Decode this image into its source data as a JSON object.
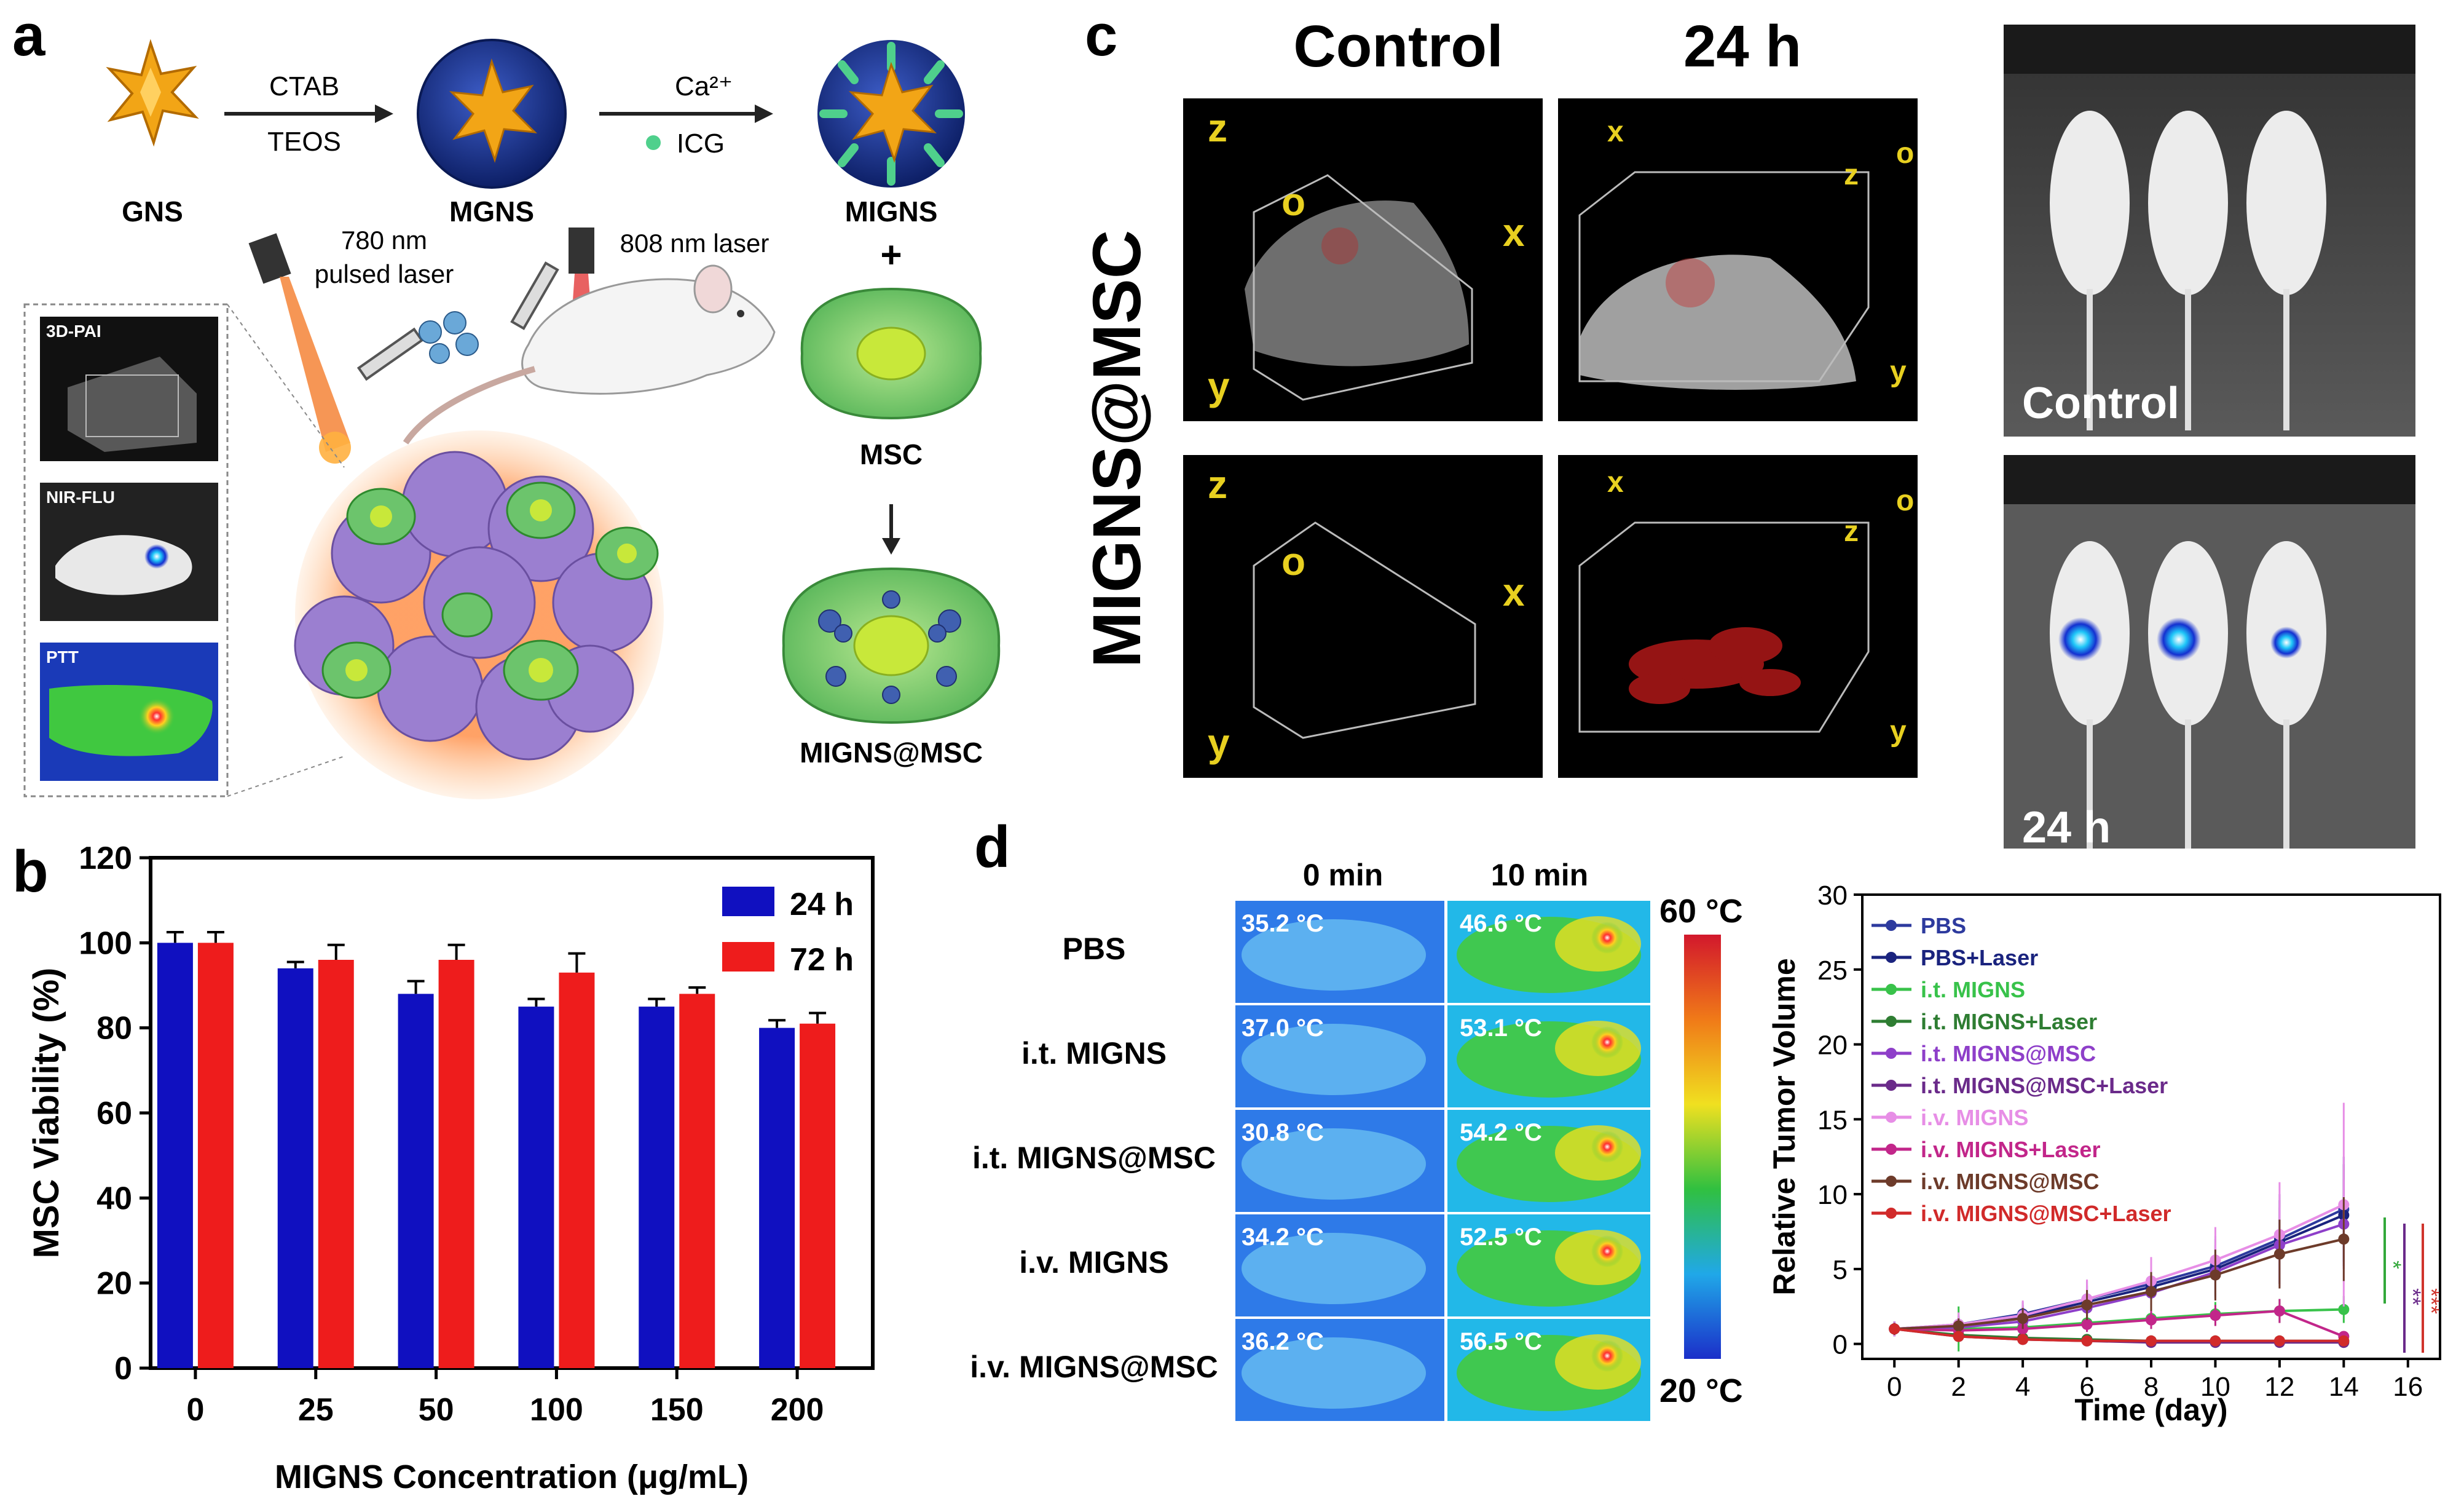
{
  "panels": {
    "a": {
      "letter": "a",
      "gns": "GNS",
      "mgns": "MGNS",
      "migns": "MIGNS",
      "ctab": "CTAB",
      "teos": "TEOS",
      "ca": "Ca²⁺",
      "icg": "ICG",
      "laser780_1": "780 nm",
      "laser780_2": "pulsed laser",
      "laser808": "808 nm laser",
      "plus": "+",
      "msc": "MSC",
      "migns_msc": "MIGNS@MSC",
      "inset_pai": "3D-PAI",
      "inset_flu": "NIR-FLU",
      "inset_ptt": "PTT"
    },
    "c": {
      "letter": "c",
      "col_control": "Control",
      "col_24h": "24 h",
      "row_label": "MIGNS@MSC",
      "mouse_control": "Control",
      "mouse_24h": "24 h"
    },
    "d": {
      "letter": "d",
      "col0": "0 min",
      "col10": "10 min",
      "rows": [
        {
          "label": "PBS",
          "t0": "35.2 °C",
          "t10": "46.6 °C"
        },
        {
          "label": "i.t. MIGNS",
          "t0": "37.0 °C",
          "t10": "53.1 °C"
        },
        {
          "label": "i.t. MIGNS@MSC",
          "t0": "30.8 °C",
          "t10": "54.2 °C"
        },
        {
          "label": "i.v. MIGNS",
          "t0": "34.2 °C",
          "t10": "52.5 °C"
        },
        {
          "label": "i.v. MIGNS@MSC",
          "t0": "36.2 °C",
          "t10": "56.5 °C"
        }
      ],
      "scale_max": "60 °C",
      "scale_min": "20 °C",
      "colors": {
        "scale_top": "#d2182c",
        "scale_bottom": "#1b2fc9"
      }
    }
  },
  "chart_data": [
    {
      "panel": "b",
      "letter": "b",
      "type": "bar",
      "categories": [
        "0",
        "25",
        "50",
        "100",
        "150",
        "200"
      ],
      "series": [
        {
          "name": "24 h",
          "color": "#1010c0",
          "values": [
            100,
            94,
            88,
            85,
            85,
            80
          ],
          "errors": [
            2.5,
            1.5,
            3.0,
            1.8,
            1.8,
            1.8
          ]
        },
        {
          "name": "72 h",
          "color": "#ee1c1c",
          "values": [
            100,
            96,
            96,
            93,
            88,
            81
          ],
          "errors": [
            2.5,
            3.5,
            3.5,
            4.5,
            1.5,
            2.5
          ]
        }
      ],
      "xlabel": "MIGNS Concentration (μg/mL)",
      "ylabel": "MSC Viability (%)",
      "ylim": [
        0,
        120
      ],
      "yticks": [
        0,
        20,
        40,
        60,
        80,
        100,
        120
      ],
      "legend": "top-right"
    },
    {
      "panel": "d",
      "type": "line",
      "x": [
        0,
        2,
        4,
        6,
        8,
        10,
        12,
        14
      ],
      "xticks": [
        0,
        2,
        4,
        6,
        8,
        10,
        12,
        14,
        16
      ],
      "xlim": [
        -1,
        17
      ],
      "yticks": [
        0,
        5,
        10,
        15,
        20,
        25,
        30
      ],
      "ylim": [
        -1,
        30
      ],
      "xlabel": "Time (day)",
      "ylabel": "Relative Tumor Volume",
      "legend": "top-left",
      "significance": [
        "*",
        "**",
        "***"
      ],
      "significance_colors": [
        "#32a83a",
        "#6a2a8a",
        "#d0342c"
      ],
      "series": [
        {
          "name": "PBS",
          "color": "#2d3a9e",
          "marker": "s",
          "values": [
            1,
            1.3,
            2.0,
            3.0,
            4.0,
            5.2,
            7.0,
            9.0
          ],
          "err": [
            0.5,
            0.6,
            0.8,
            1.2,
            1.5,
            2.0,
            3.0,
            3.5
          ]
        },
        {
          "name": "PBS+Laser",
          "color": "#1a237e",
          "marker": "o",
          "values": [
            1,
            1.2,
            1.8,
            2.8,
            3.8,
            5.0,
            6.8,
            8.6
          ],
          "err": [
            0.5,
            0.6,
            0.8,
            1.1,
            1.4,
            2.0,
            2.8,
            3.4
          ]
        },
        {
          "name": "i.t. MIGNS",
          "color": "#38c24a",
          "marker": "^",
          "values": [
            1,
            1.0,
            1.1,
            1.4,
            1.7,
            2.0,
            2.2,
            2.3
          ],
          "err": [
            0.4,
            1.5,
            0.6,
            0.6,
            0.7,
            0.8,
            0.8,
            0.9
          ]
        },
        {
          "name": "i.t. MIGNS+Laser",
          "color": "#2e7d32",
          "marker": "v",
          "values": [
            1,
            0.6,
            0.4,
            0.3,
            0.2,
            0.2,
            0.2,
            0.2
          ],
          "err": [
            0.3,
            0.2,
            0.2,
            0.2,
            0.1,
            0.1,
            0.1,
            0.1
          ]
        },
        {
          "name": "i.t. MIGNS@MSC",
          "color": "#8e3fc9",
          "marker": "D",
          "values": [
            1,
            1.1,
            1.5,
            2.4,
            3.4,
            4.8,
            6.6,
            8.0
          ],
          "err": [
            0.4,
            0.5,
            0.7,
            1.0,
            1.3,
            1.8,
            2.5,
            3.0
          ]
        },
        {
          "name": "i.t. MIGNS@MSC+Laser",
          "color": "#6a2a8a",
          "marker": "<",
          "values": [
            1,
            0.5,
            0.3,
            0.2,
            0.1,
            0.1,
            0.1,
            0.1
          ],
          "err": [
            0.3,
            0.2,
            0.1,
            0.1,
            0.1,
            0.1,
            0.1,
            0.1
          ]
        },
        {
          "name": "i.v. MIGNS",
          "color": "#e78ee6",
          "marker": ">",
          "values": [
            1,
            1.3,
            1.9,
            3.0,
            4.2,
            5.6,
            7.3,
            9.3
          ],
          "err": [
            0.5,
            0.8,
            1.0,
            1.3,
            1.6,
            2.2,
            3.5,
            6.8
          ]
        },
        {
          "name": "i.v. MIGNS+Laser",
          "color": "#c2268a",
          "marker": "p",
          "values": [
            1,
            0.9,
            1.0,
            1.3,
            1.6,
            1.9,
            2.2,
            0.5
          ],
          "err": [
            0.4,
            0.4,
            0.5,
            0.5,
            0.6,
            0.7,
            0.8,
            0.3
          ]
        },
        {
          "name": "i.v. MIGNS@MSC",
          "color": "#6d3b2a",
          "marker": "*",
          "values": [
            1,
            1.2,
            1.7,
            2.6,
            3.5,
            4.6,
            6.0,
            7.0
          ],
          "err": [
            0.4,
            0.5,
            0.7,
            1.0,
            1.3,
            1.7,
            2.3,
            2.8
          ]
        },
        {
          "name": "i.v. MIGNS@MSC+Laser",
          "color": "#d12a2a",
          "marker": "h",
          "values": [
            1,
            0.5,
            0.3,
            0.2,
            0.2,
            0.2,
            0.2,
            0.2
          ],
          "err": [
            0.3,
            0.2,
            0.1,
            0.1,
            0.1,
            0.1,
            0.1,
            0.1
          ]
        }
      ]
    }
  ]
}
